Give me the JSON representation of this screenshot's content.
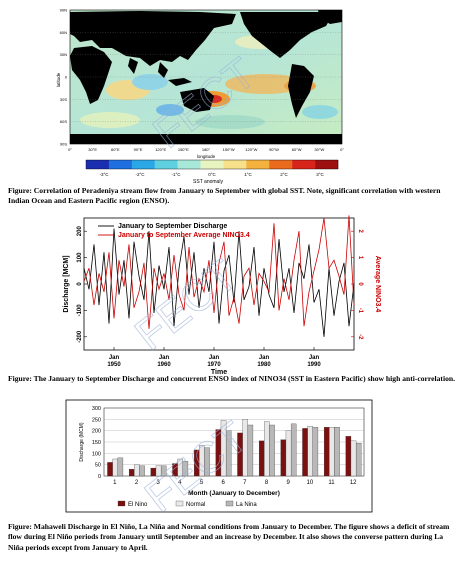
{
  "figure1": {
    "lat_labels": [
      "90N",
      "60N",
      "30N",
      "0",
      "30S",
      "60S",
      "90S"
    ],
    "lon_labels": [
      "0°",
      "30°E",
      "60°E",
      "90°E",
      "120°E",
      "150°E",
      "180°",
      "150°W",
      "120°W",
      "90°W",
      "60°W",
      "30°W",
      "0°"
    ],
    "xlabel": "longitude",
    "ylabel": "latitude",
    "colorbar_ticks": [
      "-3°C",
      "-2°C",
      "-1°C",
      "0°C",
      "1°C",
      "2°C",
      "3°C"
    ],
    "colorbar_label": "SST anomaly",
    "colorbar_colors": [
      "#1a2fb0",
      "#1f6fe0",
      "#2aa7e6",
      "#5fd0e0",
      "#a8e8d8",
      "#e8f4c0",
      "#f6e08a",
      "#f4b13e",
      "#ea6a1e",
      "#d8231a",
      "#9e1010"
    ],
    "caption": "Figure: Correlation of Peradeniya stream flow from January to September with global SST.   Note, significant correlation with western Indian Ocean and Eastern Pacific region (ENSO)."
  },
  "figure2": {
    "legend": [
      "January to September Discharge",
      "January to September Average NINO3.4"
    ],
    "ylabel_left": "Discharge [MCM]",
    "ylabel_right": "Average NINO3.4",
    "xlabel": "Time",
    "left_ticks": [
      "200",
      "100",
      "0",
      "-100",
      "-200"
    ],
    "right_ticks": [
      "-2",
      "-1",
      "0",
      "1",
      "2"
    ],
    "x_ticks": [
      "Jan\n1950",
      "Jan\n1960",
      "Jan\n1970",
      "Jan\n1980",
      "Jan\n1990"
    ],
    "colors": {
      "discharge": "#000000",
      "nino": "#cc0000"
    },
    "caption": "Figure: The January to September Discharge and concurrent ENSO index of NINO34 (SST in Eastern Pacific) show high anti-correlation."
  },
  "chart_data": [
    {
      "type": "line",
      "title": "",
      "xlabel": "Time",
      "ylabel": "Discharge [MCM]",
      "y2label": "Average NINO3.4",
      "x": [
        1944,
        1945,
        1946,
        1947,
        1948,
        1949,
        1950,
        1951,
        1952,
        1953,
        1954,
        1955,
        1956,
        1957,
        1958,
        1959,
        1960,
        1961,
        1962,
        1963,
        1964,
        1965,
        1966,
        1967,
        1968,
        1969,
        1970,
        1971,
        1972,
        1973,
        1974,
        1975,
        1976,
        1977,
        1978,
        1979,
        1980,
        1981,
        1982,
        1983,
        1984,
        1985,
        1986,
        1987,
        1988,
        1989,
        1990,
        1991,
        1992,
        1993,
        1994,
        1995,
        1996,
        1997,
        1998
      ],
      "ylim": [
        -250,
        250
      ],
      "y2lim": [
        -2.5,
        2.5
      ],
      "series": [
        {
          "name": "January to September Discharge",
          "axis": "left",
          "values": [
            60,
            -20,
            150,
            -80,
            120,
            -150,
            210,
            -40,
            90,
            -130,
            160,
            30,
            -60,
            200,
            -110,
            70,
            -20,
            140,
            -160,
            60,
            180,
            -40,
            120,
            -90,
            60,
            -30,
            160,
            -150,
            50,
            110,
            -70,
            200,
            -60,
            -10,
            140,
            -120,
            60,
            -40,
            -90,
            170,
            -30,
            60,
            -110,
            80,
            20,
            150,
            -70,
            -20,
            -200,
            60,
            -120,
            10,
            80,
            -160,
            0
          ]
        },
        {
          "name": "January to September Average NINO3.4",
          "axis": "right",
          "values": [
            0.1,
            0.6,
            -0.8,
            0.4,
            -0.3,
            1.2,
            -1.3,
            0.9,
            -0.1,
            1.5,
            -0.9,
            -0.3,
            0.8,
            -1.7,
            0.6,
            -0.2,
            0.4,
            -0.6,
            1.1,
            -0.4,
            -1.0,
            1.4,
            -0.5,
            0.2,
            -0.3,
            0.9,
            -1.1,
            0.8,
            1.6,
            -1.2,
            -0.5,
            -1.5,
            0.3,
            0.6,
            -0.8,
            0.4,
            0.1,
            -0.3,
            2.3,
            -1.0,
            0.2,
            -0.6,
            0.9,
            2.0,
            -1.6,
            -0.3,
            0.5,
            1.3,
            2.5,
            0.6,
            0.9,
            0.3,
            -0.4,
            2.6,
            -0.8
          ]
        }
      ]
    },
    {
      "type": "bar",
      "title": "",
      "xlabel": "Month (January to December)",
      "ylabel": "Discharge (MCM)",
      "ylim": [
        0,
        300
      ],
      "yticks": [
        "300",
        "250",
        "200",
        "150",
        "100",
        "50",
        "0"
      ],
      "categories": [
        "1",
        "2",
        "3",
        "4",
        "5",
        "6",
        "7",
        "8",
        "9",
        "10",
        "11",
        "12"
      ],
      "series": [
        {
          "name": "El Nino",
          "values": [
            60,
            30,
            35,
            55,
            115,
            205,
            190,
            155,
            160,
            210,
            215,
            175
          ]
        },
        {
          "name": "Normal",
          "values": [
            75,
            50,
            45,
            75,
            135,
            245,
            250,
            240,
            200,
            220,
            215,
            155
          ]
        },
        {
          "name": "La Nina",
          "values": [
            80,
            45,
            45,
            65,
            125,
            200,
            225,
            225,
            230,
            215,
            215,
            145
          ]
        }
      ],
      "colors": [
        "#7a1010",
        "#e8e8e8",
        "#b8b8b8"
      ],
      "legend": [
        "El Nino",
        "Normal",
        "La Nina"
      ],
      "caption": "Figure: Mahaweli Discharge in El Niño, La Niña and Normal conditions from January to December. The figure shows a deficit of stream flow  during El Niño periods from January until September and an increase by December. It also shows the converse pattern during La Niña periods except from January to April."
    }
  ]
}
